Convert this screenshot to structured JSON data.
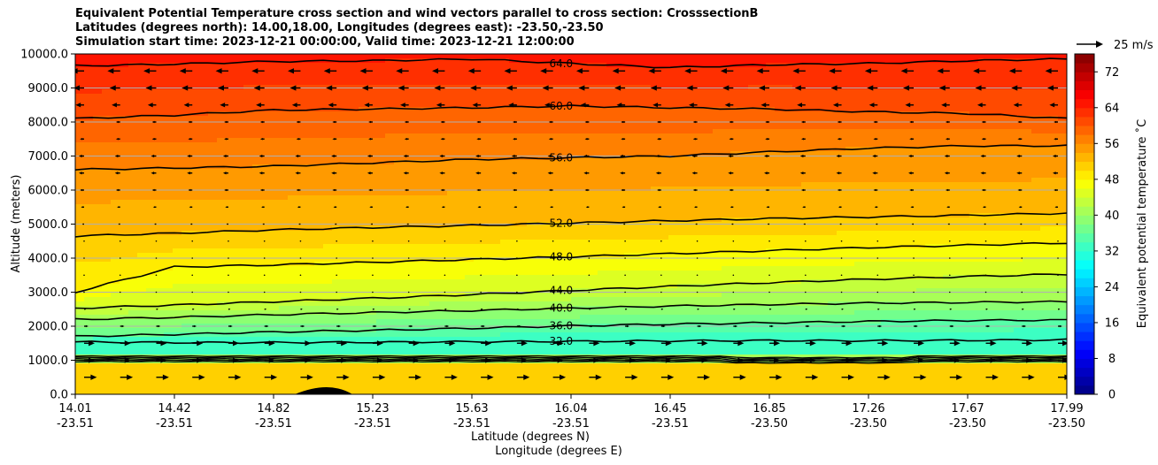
{
  "chart_data": {
    "type": "heatmap",
    "title": [
      "Equivalent Potential Temperature cross section and wind vectors parallel to cross section: CrosssectionB",
      "Latitudes (degrees north): 14.00,18.00, Longitudes (degrees east): -23.50,-23.50",
      "Simulation start time: 2023-12-21 00:00:00, Valid time: 2023-12-21 12:00:00"
    ],
    "xlabel": "Latitude (degrees N)",
    "xlabel2": "Longitude (degrees E)",
    "ylabel": "Altitude (meters)",
    "x_ticks": [
      {
        "lat": "14.01",
        "lon": "-23.51"
      },
      {
        "lat": "14.42",
        "lon": "-23.51"
      },
      {
        "lat": "14.82",
        "lon": "-23.51"
      },
      {
        "lat": "15.23",
        "lon": "-23.51"
      },
      {
        "lat": "15.63",
        "lon": "-23.51"
      },
      {
        "lat": "16.04",
        "lon": "-23.51"
      },
      {
        "lat": "16.45",
        "lon": "-23.51"
      },
      {
        "lat": "16.85",
        "lon": "-23.50"
      },
      {
        "lat": "17.26",
        "lon": "-23.50"
      },
      {
        "lat": "17.67",
        "lon": "-23.50"
      },
      {
        "lat": "17.99",
        "lon": "-23.50"
      }
    ],
    "y_ticks": [
      "0.0",
      "1000.0",
      "2000.0",
      "3000.0",
      "4000.0",
      "5000.0",
      "6000.0",
      "7000.0",
      "8000.0",
      "9000.0",
      "10000.0"
    ],
    "ylim": [
      0,
      10000
    ],
    "grid": "horizontal",
    "colorbar": {
      "label": "Equivalent potential temperature ˚C",
      "ticks": [
        "0",
        "8",
        "16",
        "24",
        "32",
        "40",
        "48",
        "56",
        "64",
        "72"
      ],
      "range": [
        0,
        76
      ],
      "step": 2
    },
    "contours": [
      {
        "level": 32,
        "label": "32.0",
        "alt": [
          1540,
          1520,
          1520,
          1530,
          1545,
          1555,
          1570,
          1580,
          1575,
          1585,
          1600
        ]
      },
      {
        "level": 36,
        "label": "36.0",
        "alt": [
          1700,
          1760,
          1830,
          1880,
          1940,
          2010,
          2060,
          2100,
          2140,
          2170,
          2180
        ]
      },
      {
        "level": 40,
        "label": "40.0",
        "alt": [
          2200,
          2260,
          2340,
          2400,
          2460,
          2530,
          2590,
          2640,
          2680,
          2700,
          2720
        ]
      },
      {
        "level": 44,
        "label": "44.0",
        "alt": [
          2530,
          2620,
          2720,
          2820,
          2930,
          3050,
          3170,
          3280,
          3380,
          3460,
          3530
        ]
      },
      {
        "level": 48,
        "label": "48.0",
        "alt": [
          3000,
          3740,
          3800,
          3880,
          3960,
          4040,
          4130,
          4220,
          4310,
          4380,
          4450
        ]
      },
      {
        "level": 52,
        "label": "52.0",
        "alt": [
          4650,
          4730,
          4830,
          4900,
          4960,
          5030,
          5100,
          5160,
          5210,
          5260,
          5320
        ]
      },
      {
        "level": 56,
        "label": "56.0",
        "alt": [
          6600,
          6650,
          6700,
          6800,
          6900,
          6950,
          7000,
          7120,
          7230,
          7300,
          7300
        ]
      },
      {
        "level": 60,
        "label": "60.0",
        "alt": [
          8100,
          8200,
          8350,
          8380,
          8420,
          8470,
          8420,
          8380,
          8300,
          8250,
          8100
        ]
      },
      {
        "level": 64,
        "label": "64.0",
        "alt": [
          9650,
          9700,
          9780,
          9800,
          9850,
          9720,
          9600,
          9680,
          9720,
          9800,
          9850
        ]
      }
    ],
    "wind": {
      "reference_label": "25 m/s",
      "reference_speed": 25,
      "altitudes": [
        500,
        1000,
        1500,
        2000,
        2500,
        3000,
        3500,
        4000,
        4500,
        5000,
        5500,
        6000,
        6500,
        7000,
        7500,
        8000,
        8500,
        9000,
        9500
      ],
      "u_ms": [
        12,
        10,
        10,
        4,
        2,
        0.5,
        0.5,
        0,
        -1,
        -2,
        -3,
        -4,
        -5,
        -5,
        -4,
        -4,
        -8,
        -10,
        -12
      ]
    }
  }
}
